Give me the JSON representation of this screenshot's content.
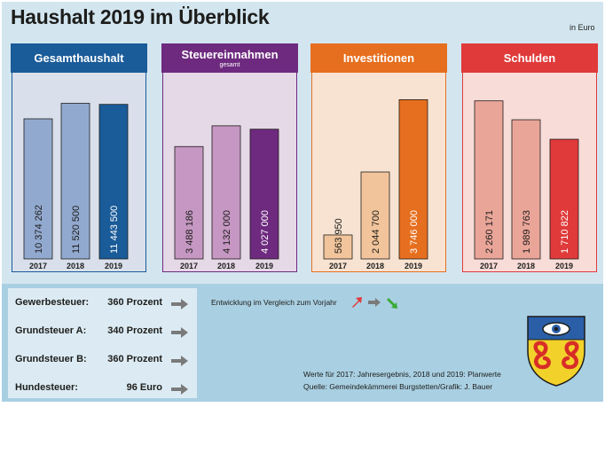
{
  "title": "Haushalt 2019 im Überblick",
  "unit": "in Euro",
  "chart_data": [
    {
      "type": "bar",
      "title": "Gesamthaushalt",
      "subtitle": "",
      "categories": [
        "2017",
        "2018",
        "2019"
      ],
      "values": [
        10374262,
        11520500,
        11443500
      ],
      "value_labels": [
        "10 374 262",
        "11 520 500",
        "11 443 500"
      ],
      "ylim": [
        0,
        13000000
      ],
      "head_color": "#1a5b99",
      "body_color": "#d9e0ec",
      "bar_colors": [
        "#92a9cf",
        "#92a9cf",
        "#1a5b99"
      ]
    },
    {
      "type": "bar",
      "title": "Steuereinnahmen",
      "subtitle": "gesamt",
      "categories": [
        "2017",
        "2018",
        "2019"
      ],
      "values": [
        3488186,
        4132000,
        4027000
      ],
      "value_labels": [
        "3 488 186",
        "4 132 000",
        "4 027 000"
      ],
      "ylim": [
        0,
        5450000
      ],
      "head_color": "#6e2a7f",
      "body_color": "#e5d8e7",
      "bar_colors": [
        "#c597c2",
        "#c597c2",
        "#6e2a7f"
      ]
    },
    {
      "type": "bar",
      "title": "Investitionen",
      "subtitle": "",
      "categories": [
        "2017",
        "2018",
        "2019"
      ],
      "values": [
        563950,
        2044700,
        3746000
      ],
      "value_labels": [
        "563 950",
        "2 044 700",
        "3 746 000"
      ],
      "ylim": [
        0,
        4130000
      ],
      "head_color": "#e66f1f",
      "body_color": "#f8e3d2",
      "bar_colors": [
        "#f2c49b",
        "#f2c49b",
        "#e66f1f"
      ]
    },
    {
      "type": "bar",
      "title": "Schulden",
      "subtitle": "",
      "categories": [
        "2017",
        "2018",
        "2019"
      ],
      "values": [
        2260171,
        1989763,
        1710822
      ],
      "value_labels": [
        "2 260 171",
        "1 989 763",
        "1 710 822"
      ],
      "ylim": [
        0,
        2510000
      ],
      "head_color": "#e03a3a",
      "body_color": "#f8dcd8",
      "bar_colors": [
        "#eaa599",
        "#eaa599",
        "#e03a3a"
      ]
    }
  ],
  "taxes": [
    {
      "name": "Gewerbesteuer:",
      "value": "360 Prozent",
      "trend": "gleich"
    },
    {
      "name": "Grundsteuer A:",
      "value": "340 Prozent",
      "trend": "gleich"
    },
    {
      "name": "Grundsteuer B:",
      "value": "360 Prozent",
      "trend": "gleich"
    },
    {
      "name": "Hundesteuer:",
      "value": "96 Euro",
      "trend": "gleich"
    }
  ],
  "trend_legend": {
    "text": "Entwicklung im Vergleich zum Vorjahr",
    "colors": {
      "up": "#e03a3a",
      "same": "#7a7a7a",
      "down": "#3aa935"
    }
  },
  "footnote_values": "Werte für 2017: Jahresergebnis, 2018 und 2019: Planwerte",
  "footnote_source": "Quelle:  Gemeindekämmerei Burgstetten/Grafik: J. Bauer",
  "crest_icon": "burgstetten-crest-icon"
}
